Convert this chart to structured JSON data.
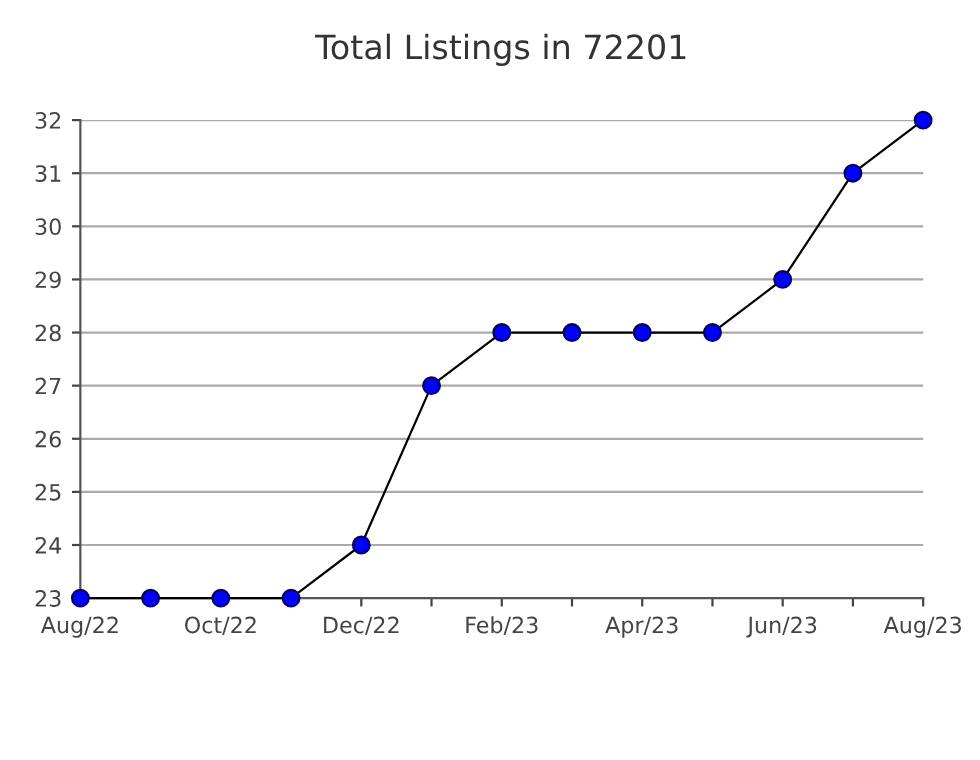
{
  "chart_data": {
    "type": "line",
    "title": "Total Listings in 72201",
    "categories": [
      "Aug/22",
      null,
      "Oct/22",
      null,
      "Dec/22",
      null,
      "Feb/23",
      null,
      "Apr/23",
      null,
      "Jun/23",
      null,
      "Aug/23"
    ],
    "series": [
      {
        "color": "#0000ff",
        "values": [
          23,
          23,
          23,
          23,
          24,
          27,
          28,
          28,
          28,
          28,
          29,
          31,
          32
        ]
      }
    ],
    "ylim": [
      23,
      32
    ],
    "yticks": [
      23,
      24,
      25,
      26,
      27,
      28,
      29,
      30,
      31,
      32
    ],
    "grid": "y",
    "marker": "circle",
    "line_style": "solid"
  }
}
